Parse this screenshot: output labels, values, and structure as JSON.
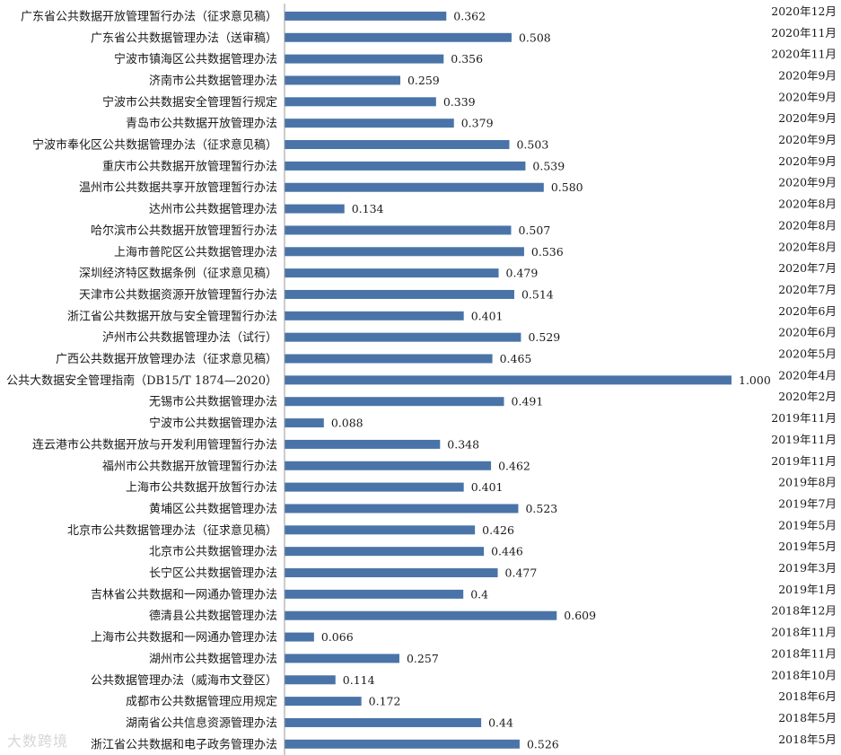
{
  "chart_data": {
    "type": "bar",
    "orientation": "horizontal",
    "categories": [
      "广东省公共数据开放管理暂行办法（征求意见稿）",
      "广东省公共数据管理办法（送审稿）",
      "宁波市镇海区公共数据管理办法",
      "济南市公共数据管理办法",
      "宁波市公共数据安全管理暂行规定",
      "青岛市公共数据开放管理办法",
      "宁波市奉化区公共数据管理办法（征求意见稿）",
      "重庆市公共数据开放管理暂行办法",
      "温州市公共数据共享开放管理暂行办法",
      "达州市公共数据管理办法",
      "哈尔滨市公共数据开放管理暂行办法",
      "上海市普陀区公共数据管理办法",
      "深圳经济特区数据条例（征求意见稿）",
      "天津市公共数据资源开放管理暂行办法",
      "浙江省公共数据开放与安全管理暂行办法",
      "泸州市公共数据管理办法（试行）",
      "广西公共数据开放管理办法（征求意见稿）",
      "公共大数据安全管理指南（DB15/T 1874—2020）",
      "无锡市公共数据管理办法",
      "宁波市公共数据管理办法",
      "连云港市公共数据开放与开发利用管理暂行办法",
      "福州市公共数据开放管理暂行办法",
      "上海市公共数据开放暂行办法",
      "黄埔区公共数据管理办法",
      "北京市公共数据管理办法（征求意见稿）",
      "北京市公共数据管理办法",
      "长宁区公共数据管理办法",
      "吉林省公共数据和一网通办管理办法",
      "德清县公共数据管理办法",
      "上海市公共数据和一网通办管理办法",
      "湖州市公共数据管理办法",
      "公共数据管理办法（威海市文登区）",
      "成都市公共数据管理应用规定",
      "湖南省公共信息资源管理办法",
      "浙江省公共数据和电子政务管理办法"
    ],
    "values": [
      0.362,
      0.508,
      0.356,
      0.259,
      0.339,
      0.379,
      0.503,
      0.539,
      0.58,
      0.134,
      0.507,
      0.536,
      0.479,
      0.514,
      0.401,
      0.529,
      0.465,
      1.0,
      0.491,
      0.088,
      0.348,
      0.462,
      0.401,
      0.523,
      0.426,
      0.446,
      0.477,
      0.4,
      0.609,
      0.066,
      0.257,
      0.114,
      0.172,
      0.44,
      0.526
    ],
    "value_labels": [
      "0.362",
      "0.508",
      "0.356",
      "0.259",
      "0.339",
      "0.379",
      "0.503",
      "0.539",
      "0.580",
      "0.134",
      "0.507",
      "0.536",
      "0.479",
      "0.514",
      "0.401",
      "0.529",
      "0.465",
      "1.000",
      "0.491",
      "0.088",
      "0.348",
      "0.462",
      "0.401",
      "0.523",
      "0.426",
      "0.446",
      "0.477",
      "0.4",
      "0.609",
      "0.066",
      "0.257",
      "0.114",
      "0.172",
      "0.44",
      "0.526"
    ],
    "dates": [
      "2020年12月",
      "2020年11月",
      "2020年11月",
      "2020年9月",
      "2020年9月",
      "2020年9月",
      "2020年9月",
      "2020年9月",
      "2020年9月",
      "2020年8月",
      "2020年8月",
      "2020年8月",
      "2020年7月",
      "2020年7月",
      "2020年6月",
      "2020年6月",
      "2020年5月",
      "2020年4月",
      "2020年2月",
      "2019年11月",
      "2019年11月",
      "2019年11月",
      "2019年8月",
      "2019年7月",
      "2019年5月",
      "2019年5月",
      "2019年3月",
      "2019年1月",
      "2018年12月",
      "2018年11月",
      "2018年11月",
      "2018年10月",
      "2018年6月",
      "2018年5月",
      "2018年5月"
    ],
    "xlim": [
      0,
      1
    ],
    "title": "",
    "xlabel": "",
    "ylabel": "",
    "grid": false,
    "bar_color": "#4a74a8"
  },
  "watermark": "大数跨境"
}
